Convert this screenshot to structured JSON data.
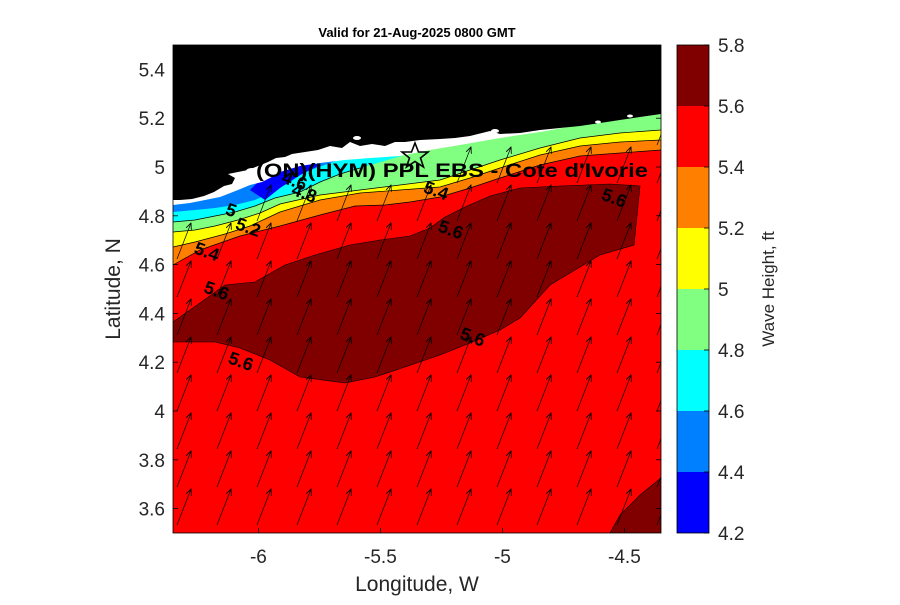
{
  "figure": {
    "title": "Valid for 21-Aug-2025 0800 GMT",
    "xlabel": "Longitude, W",
    "ylabel": "Latitude, N",
    "colorbar_label": "Wave Height, ft",
    "site_label": "(ON)(HYM) PPL EBS  - Cote d'Ivorie"
  },
  "chart_data": {
    "type": "heatmap",
    "title": "Valid for 21-Aug-2025 0800 GMT",
    "xlabel": "Longitude, W",
    "ylabel": "Latitude, N",
    "xlim": [
      -6.35,
      -4.35
    ],
    "ylim": [
      3.5,
      5.5
    ],
    "x_ticks": [
      -6,
      -5.5,
      -5,
      -4.5
    ],
    "x_tick_labels": [
      "-6",
      "-5.5",
      "-5",
      "-4.5"
    ],
    "y_ticks": [
      3.6,
      3.8,
      4.0,
      4.2,
      4.4,
      4.6,
      4.8,
      5.0,
      5.2,
      5.4
    ],
    "y_tick_labels": [
      "3.6",
      "3.8",
      "4",
      "4.2",
      "4.4",
      "4.6",
      "4.8",
      "5",
      "5.2",
      "5.4"
    ],
    "colorbar": {
      "label": "Wave Height, ft",
      "levels": [
        4.2,
        4.4,
        4.6,
        4.8,
        5.0,
        5.2,
        5.4,
        5.6,
        5.8
      ],
      "tick_labels": [
        "4.2",
        "4.4",
        "4.6",
        "4.8",
        "5",
        "5.2",
        "5.4",
        "5.6",
        "5.8"
      ],
      "colors": [
        "#0000ff",
        "#0080ff",
        "#00ffff",
        "#80ff80",
        "#ffff00",
        "#ff8000",
        "#ff0000",
        "#800000"
      ]
    },
    "contour_labels": [
      {
        "text": "4.6",
        "lon": -5.86,
        "lat": 4.92
      },
      {
        "text": "4.8",
        "lon": -5.82,
        "lat": 4.87
      },
      {
        "text": "5",
        "lon": -6.12,
        "lat": 4.8
      },
      {
        "text": "5.2",
        "lon": -6.05,
        "lat": 4.73
      },
      {
        "text": "5.4",
        "lon": -6.22,
        "lat": 4.63
      },
      {
        "text": "5.4",
        "lon": -5.28,
        "lat": 4.88
      },
      {
        "text": "5.6",
        "lon": -6.18,
        "lat": 4.47
      },
      {
        "text": "5.6",
        "lon": -5.22,
        "lat": 4.72
      },
      {
        "text": "5.6",
        "lon": -4.55,
        "lat": 4.85
      },
      {
        "text": "5.6",
        "lon": -5.13,
        "lat": 4.28
      },
      {
        "text": "5.6",
        "lon": -6.08,
        "lat": 4.18
      }
    ],
    "site": {
      "lon": -5.34,
      "lat": 5.05,
      "marker": "star"
    },
    "land_color": "#000000",
    "wave_direction": "toward north-northeast",
    "grid": false
  }
}
